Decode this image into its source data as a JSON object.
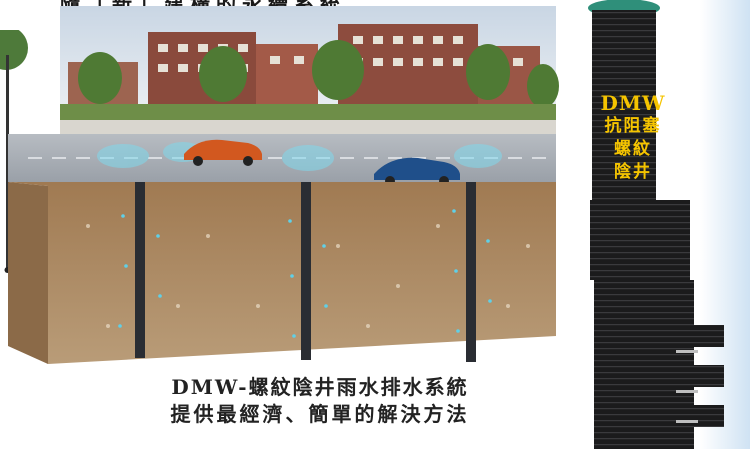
{
  "top_caption": "隨「新」建構的永續系統",
  "caption": {
    "line1": "DMW-螺紋陰井雨水排水系統",
    "line2": "提供最經濟、簡單的解決方法"
  },
  "product_label": {
    "brand": "DMW",
    "line1": "抗阻塞",
    "line2": "螺紋",
    "line3": "陰井"
  },
  "colors": {
    "brand_yellow": "#f5c400",
    "pipe": "#2a2d33",
    "water": "#5fd0e8"
  }
}
